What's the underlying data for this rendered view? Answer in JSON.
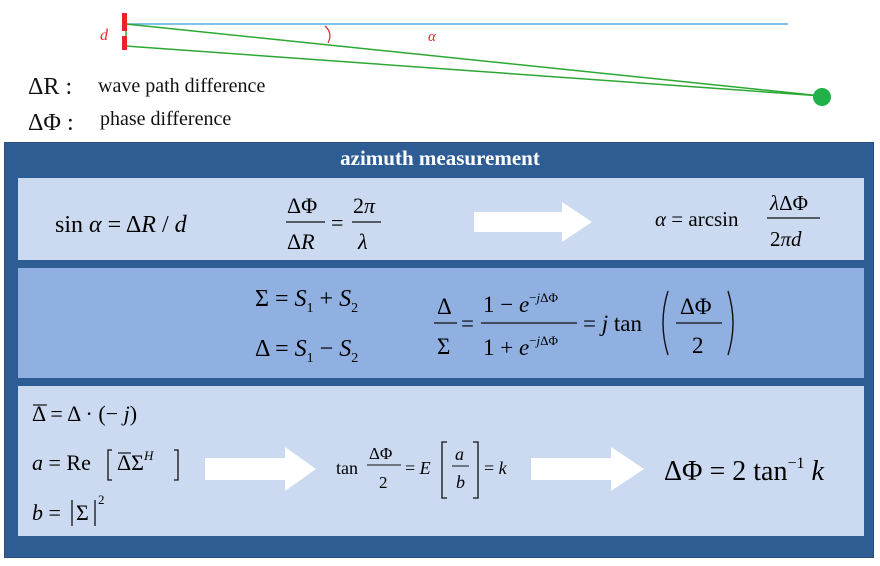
{
  "geometry": {
    "d_label": "d",
    "alpha_label": "α",
    "colors": {
      "baseline": "#5aaee0",
      "path": "#2aa832",
      "antenna": "#e8232a",
      "dot": "#22b04a"
    }
  },
  "legend": [
    {
      "symbol": "ΔR :",
      "text": "wave path difference"
    },
    {
      "symbol": "ΔΦ :",
      "text": "phase difference"
    }
  ],
  "panel": {
    "title": "azimuth measurement",
    "colors": {
      "frame": "#2e5d94",
      "box_light": "#cbdaf0",
      "box_mid": "#8fb0e1",
      "arrow": "#ffffff"
    }
  }
}
